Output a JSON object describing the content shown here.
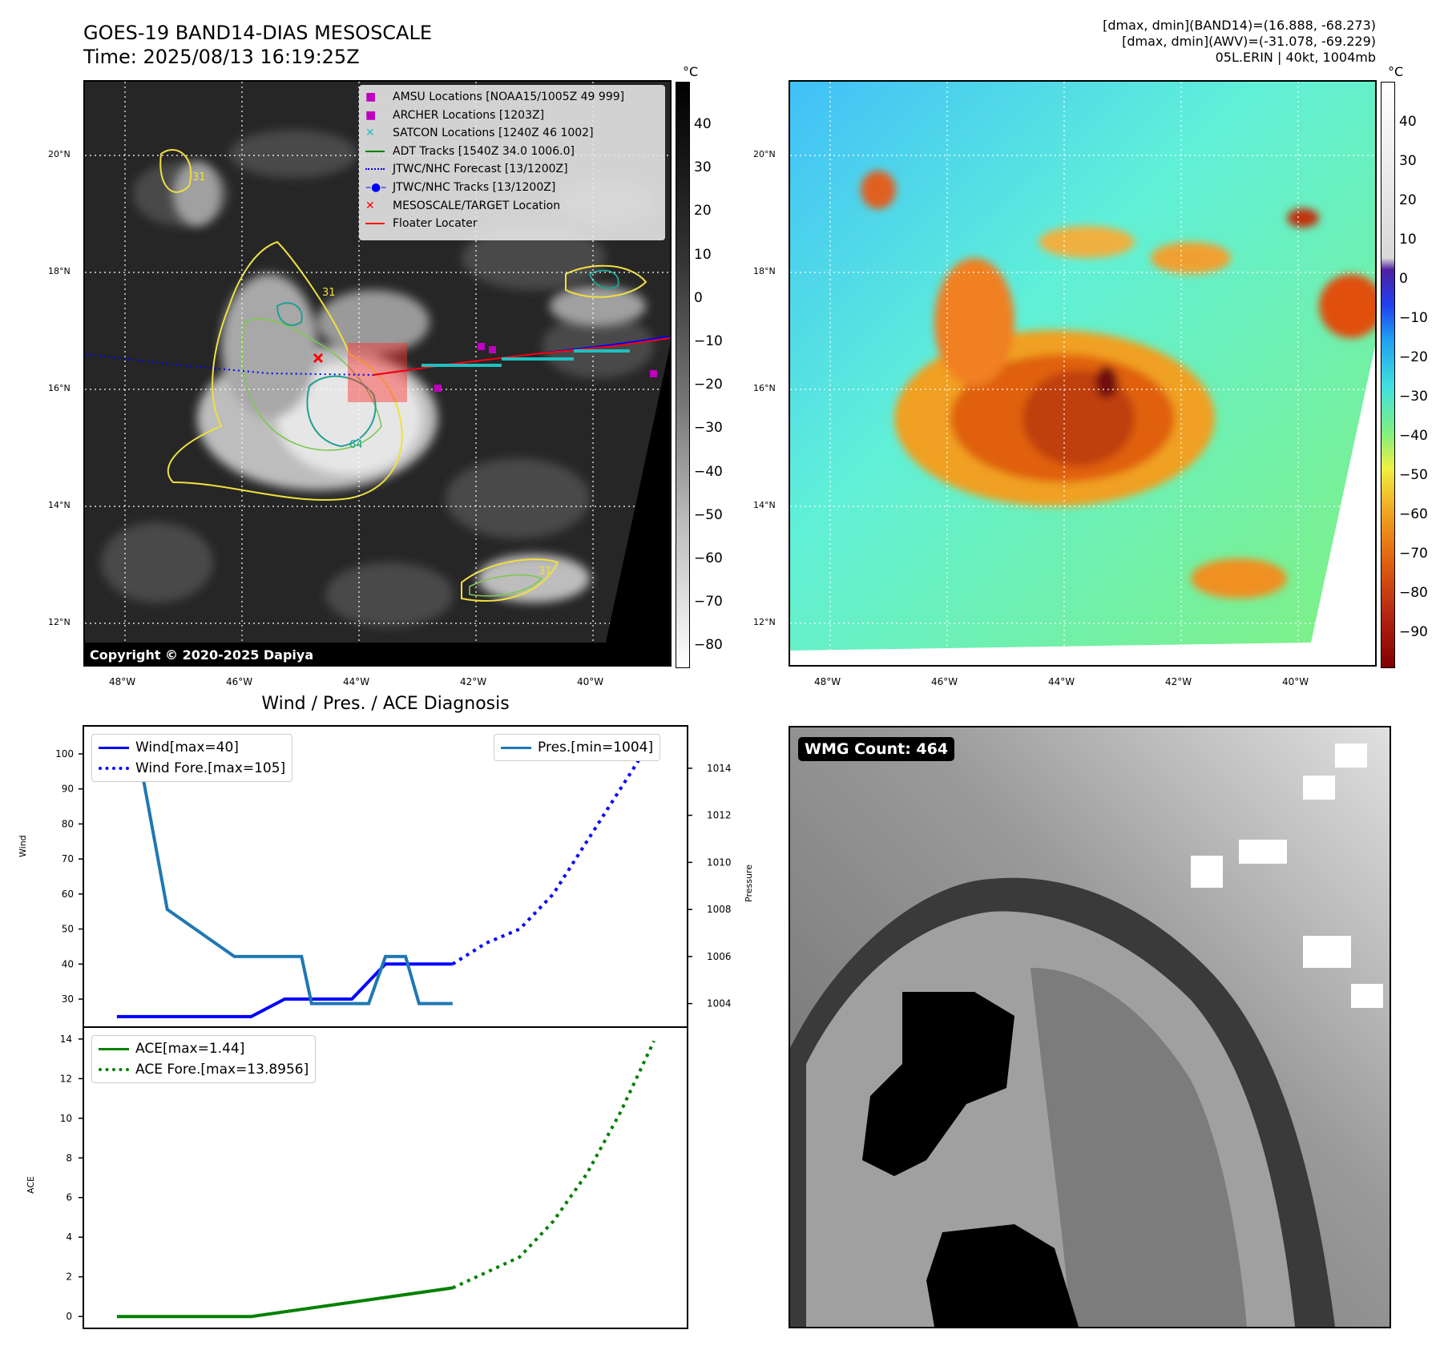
{
  "header": {
    "title_line1": "GOES-19 BAND14-DIAS MESOSCALE",
    "title_line2": "Time: 2025/08/13 16:19:25Z",
    "info_line1": "[dmax, dmin](BAND14)=(16.888, -68.273)",
    "info_line2": "[dmax, dmin](AWV)=(-31.078, -69.229)",
    "info_line3": "05L.ERIN | 40kt, 1004mb"
  },
  "map": {
    "lat_labels": [
      "20°N",
      "18°N",
      "16°N",
      "14°N",
      "12°N"
    ],
    "lon_labels": [
      "48°W",
      "46°W",
      "44°W",
      "42°W",
      "40°W"
    ],
    "copyright": "Copyright © 2020-2025 Dapiya",
    "contour_labels": [
      "31",
      "31",
      "31",
      "64"
    ],
    "legend": [
      {
        "label": "AMSU Locations [NOAA15/1005Z 49 999]",
        "color": "#c000c0",
        "kind": "square"
      },
      {
        "label": "ARCHER Locations [1203Z]",
        "color": "#c000c0",
        "kind": "square"
      },
      {
        "label": "SATCON Locations [1240Z 46 1002]",
        "color": "#20c0c0",
        "kind": "x"
      },
      {
        "label": "ADT Tracks [1540Z 34.0 1006.0]",
        "color": "#008000",
        "kind": "line"
      },
      {
        "label": "JTWC/NHC Forecast [13/1200Z]",
        "color": "#0000ff",
        "kind": "dotted"
      },
      {
        "label": "JTWC/NHC Tracks [13/1200Z]",
        "color": "#0000ff",
        "kind": "line-dot"
      },
      {
        "label": "MESOSCALE/TARGET Location",
        "color": "#ff0000",
        "kind": "x"
      },
      {
        "label": "Floater Locater",
        "color": "#ff0000",
        "kind": "line"
      }
    ],
    "cbar1_unit": "°C",
    "cbar1_ticks": [
      "40",
      "30",
      "20",
      "10",
      "0",
      "−10",
      "−20",
      "−30",
      "−40",
      "−50",
      "−60",
      "−70",
      "−80"
    ],
    "cbar2_unit": "°C",
    "cbar2_ticks": [
      "40",
      "30",
      "20",
      "10",
      "0",
      "−10",
      "−20",
      "−30",
      "−40",
      "−50",
      "−60",
      "−70",
      "−80",
      "−90"
    ]
  },
  "diagnosis": {
    "title": "Wind / Pres. / ACE Diagnosis",
    "wind_ylabel": "Wind",
    "pressure_ylabel": "Pressure",
    "ace_ylabel": "ACE",
    "wind_ticks": [
      "100",
      "90",
      "80",
      "70",
      "60",
      "50",
      "40",
      "30"
    ],
    "pressure_ticks": [
      "1014",
      "1012",
      "1010",
      "1008",
      "1006",
      "1004"
    ],
    "ace_ticks": [
      "14",
      "12",
      "10",
      "8",
      "6",
      "4",
      "2",
      "0"
    ],
    "legend_wind": "Wind[max=40]",
    "legend_wind_fore": "Wind Fore.[max=105]",
    "legend_pres": "Pres.[min=1004]",
    "legend_ace": "ACE[max=1.44]",
    "legend_ace_fore": "ACE Fore.[max=13.8956]"
  },
  "wmg": {
    "badge": "WMG Count: 464"
  },
  "chart_data": [
    {
      "type": "line",
      "title": "Wind / Pres. / ACE Diagnosis",
      "xlabel": "",
      "ylabel": "Wind",
      "y2label": "Pressure",
      "ylim": [
        22,
        108
      ],
      "y2lim": [
        1003,
        1015.8
      ],
      "series": [
        {
          "name": "Wind[max=40]",
          "color": "#0000ff",
          "style": "solid",
          "x": [
            0,
            1,
            2,
            3,
            4,
            5,
            6,
            7,
            8,
            9,
            10
          ],
          "values": [
            25,
            25,
            25,
            25,
            25,
            30,
            30,
            30,
            40,
            40,
            40
          ]
        },
        {
          "name": "Wind Fore.[max=105]",
          "color": "#0000ff",
          "style": "dotted",
          "x": [
            10,
            11,
            12,
            13,
            14,
            15,
            16
          ],
          "values": [
            40,
            46,
            50,
            60,
            75,
            90,
            105
          ]
        },
        {
          "name": "Pres.[min=1004]",
          "color": "#1f77b4",
          "style": "solid",
          "axis": "right",
          "x": [
            0,
            0.3,
            0.6,
            1.5,
            3.5,
            5.5,
            5.8,
            6.5,
            7.5,
            8,
            8.6,
            9,
            9.5,
            10
          ],
          "values": [
            1015,
            1015,
            1015,
            1008,
            1006,
            1006,
            1004,
            1004,
            1004,
            1006,
            1006,
            1004,
            1004,
            1004
          ]
        }
      ]
    },
    {
      "type": "line",
      "xlabel": "",
      "ylabel": "ACE",
      "ylim": [
        -0.6,
        14.6
      ],
      "series": [
        {
          "name": "ACE[max=1.44]",
          "color": "#008000",
          "style": "solid",
          "x": [
            0,
            4,
            10
          ],
          "values": [
            0,
            0,
            1.44
          ]
        },
        {
          "name": "ACE Fore.[max=13.8956]",
          "color": "#008000",
          "style": "dotted",
          "x": [
            10,
            12,
            13,
            14,
            15,
            16
          ],
          "values": [
            1.44,
            3.0,
            4.8,
            7.2,
            10.3,
            13.8956
          ]
        }
      ]
    }
  ]
}
